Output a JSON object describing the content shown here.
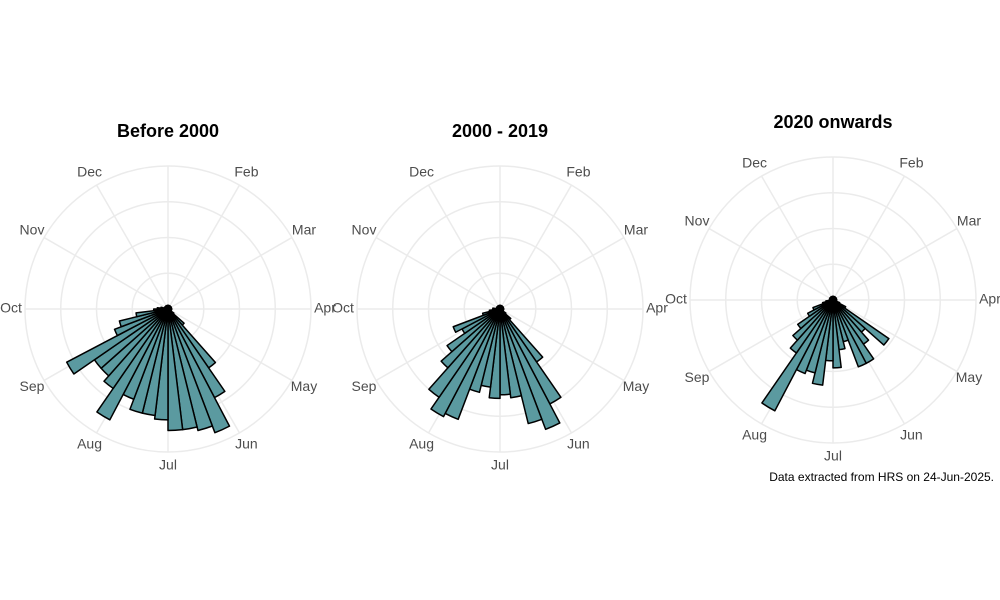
{
  "chart_data": [
    {
      "type": "polar-bar",
      "title": "Before 2000",
      "color": "#5b9aa0",
      "xlim": [
        0,
        52
      ],
      "ylim": [
        0,
        40
      ],
      "yticks": [
        10,
        20,
        30,
        40
      ],
      "grid": true,
      "xticks": [
        {
          "value": 4.33,
          "label": "Feb"
        },
        {
          "value": 8.67,
          "label": "Mar"
        },
        {
          "value": 13,
          "label": "Apr"
        },
        {
          "value": 17.33,
          "label": "May"
        },
        {
          "value": 21.67,
          "label": "Jun"
        },
        {
          "value": 26,
          "label": "Jul"
        },
        {
          "value": 30.33,
          "label": "Aug"
        },
        {
          "value": 34.67,
          "label": "Sep"
        },
        {
          "value": 39,
          "label": "Oct"
        },
        {
          "value": 43.33,
          "label": "Nov"
        },
        {
          "value": 47.67,
          "label": "Dec"
        }
      ],
      "x": [
        0,
        1,
        2,
        3,
        4,
        5,
        6,
        7,
        8,
        9,
        10,
        11,
        12,
        13,
        14,
        15,
        16,
        17,
        18,
        19,
        20,
        21,
        22,
        23,
        24,
        25,
        26,
        27,
        28,
        29,
        30,
        31,
        32,
        33,
        34,
        35,
        36,
        37,
        38,
        39,
        40,
        41,
        42,
        43,
        44,
        45,
        46,
        47,
        48,
        49,
        50,
        51
      ],
      "values": [
        1,
        1,
        1,
        1,
        1,
        1,
        1,
        1,
        1,
        1,
        1,
        1,
        1,
        1,
        1,
        1,
        1,
        1,
        2,
        6,
        20,
        28,
        37,
        35,
        34,
        34,
        31,
        30,
        30,
        27,
        35,
        27,
        25,
        25,
        32,
        16,
        14,
        9,
        4,
        3,
        2,
        1,
        1,
        1,
        1,
        1,
        1,
        1,
        1,
        1,
        1,
        1
      ]
    },
    {
      "type": "polar-bar",
      "title": "2000 - 2019",
      "color": "#5b9aa0",
      "xlim": [
        0,
        52
      ],
      "ylim": [
        0,
        40
      ],
      "yticks": [
        10,
        20,
        30,
        40
      ],
      "grid": true,
      "xticks": [
        {
          "value": 4.33,
          "label": "Feb"
        },
        {
          "value": 8.67,
          "label": "Mar"
        },
        {
          "value": 13,
          "label": "Apr"
        },
        {
          "value": 17.33,
          "label": "May"
        },
        {
          "value": 21.67,
          "label": "Jun"
        },
        {
          "value": 26,
          "label": "Jul"
        },
        {
          "value": 30.33,
          "label": "Aug"
        },
        {
          "value": 34.67,
          "label": "Sep"
        },
        {
          "value": 39,
          "label": "Oct"
        },
        {
          "value": 43.33,
          "label": "Nov"
        },
        {
          "value": 47.67,
          "label": "Dec"
        }
      ],
      "x": [
        0,
        1,
        2,
        3,
        4,
        5,
        6,
        7,
        8,
        9,
        10,
        11,
        12,
        13,
        14,
        15,
        16,
        17,
        18,
        19,
        20,
        21,
        22,
        23,
        24,
        25,
        26,
        27,
        28,
        29,
        30,
        31,
        32,
        33,
        34,
        35,
        36,
        37,
        38,
        39,
        40,
        41,
        42,
        43,
        44,
        45,
        46,
        47,
        48,
        49,
        50,
        51
      ],
      "values": [
        1,
        1,
        1,
        1,
        1,
        1,
        1,
        1,
        1,
        1,
        1,
        1,
        1,
        1,
        1,
        1,
        1,
        1,
        2,
        4,
        18,
        30,
        36,
        33,
        25,
        24,
        25,
        22,
        24,
        33,
        34,
        30,
        22,
        18,
        12,
        14,
        5,
        3,
        2,
        2,
        1,
        1,
        1,
        1,
        1,
        1,
        1,
        1,
        1,
        1,
        1,
        1
      ]
    },
    {
      "type": "polar-bar",
      "title": "2020 onwards",
      "color": "#5b9aa0",
      "xlim": [
        0,
        52
      ],
      "ylim": [
        0,
        40
      ],
      "yticks": [
        10,
        20,
        30,
        40
      ],
      "grid": true,
      "xticks": [
        {
          "value": 4.33,
          "label": "Feb"
        },
        {
          "value": 8.67,
          "label": "Mar"
        },
        {
          "value": 13,
          "label": "Apr"
        },
        {
          "value": 17.33,
          "label": "May"
        },
        {
          "value": 21.67,
          "label": "Jun"
        },
        {
          "value": 26,
          "label": "Jul"
        },
        {
          "value": 30.33,
          "label": "Aug"
        },
        {
          "value": 34.67,
          "label": "Sep"
        },
        {
          "value": 39,
          "label": "Oct"
        },
        {
          "value": 43.33,
          "label": "Nov"
        },
        {
          "value": 47.67,
          "label": "Dec"
        }
      ],
      "x": [
        0,
        1,
        2,
        3,
        4,
        5,
        6,
        7,
        8,
        9,
        10,
        11,
        12,
        13,
        14,
        15,
        16,
        17,
        18,
        19,
        20,
        21,
        22,
        23,
        24,
        25,
        26,
        27,
        28,
        29,
        30,
        31,
        32,
        33,
        34,
        35,
        36,
        37,
        38,
        39,
        40,
        41,
        42,
        43,
        44,
        45,
        46,
        47,
        48,
        49,
        50,
        51
      ],
      "values": [
        1,
        1,
        1,
        1,
        1,
        1,
        1,
        1,
        1,
        1,
        1,
        1,
        1,
        1,
        1,
        1,
        2,
        4,
        19,
        12,
        15,
        20,
        20,
        12,
        14,
        19,
        17,
        24,
        21,
        22,
        35,
        18,
        15,
        12,
        8,
        6,
        3,
        2,
        1,
        1,
        1,
        1,
        1,
        1,
        1,
        1,
        1,
        1,
        1,
        1,
        1,
        1
      ]
    }
  ],
  "caption": "Data extracted from HRS on 24-Jun-2025."
}
